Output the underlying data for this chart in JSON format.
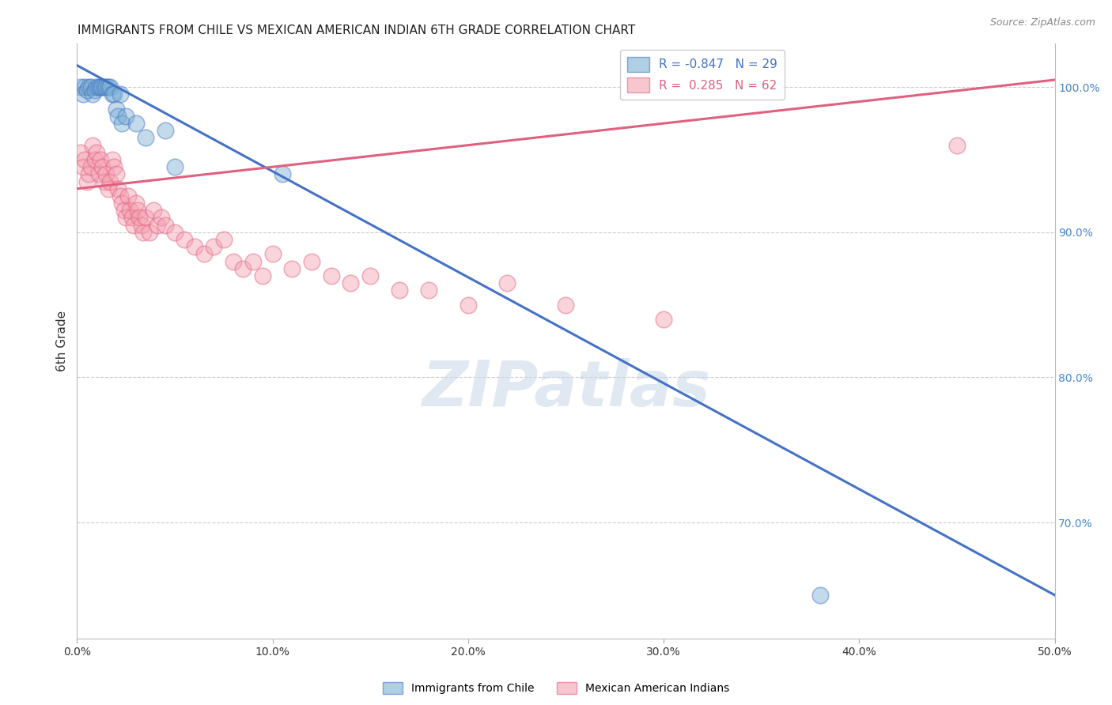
{
  "title": "IMMIGRANTS FROM CHILE VS MEXICAN AMERICAN INDIAN 6TH GRADE CORRELATION CHART",
  "source": "Source: ZipAtlas.com",
  "ylabel": "6th Grade",
  "xlim": [
    0.0,
    50.0
  ],
  "ylim": [
    62.0,
    103.0
  ],
  "ytick_labels": [
    "100.0%",
    "90.0%",
    "80.0%",
    "70.0%"
  ],
  "ytick_values": [
    100.0,
    90.0,
    80.0,
    70.0
  ],
  "xtick_values": [
    0.0,
    10.0,
    20.0,
    30.0,
    40.0,
    50.0
  ],
  "legend_blue_r": "R = -0.847",
  "legend_blue_n": "N = 29",
  "legend_pink_r": "R =  0.285",
  "legend_pink_n": "N = 62",
  "blue_color": "#7BAFD4",
  "pink_color": "#F4A0B0",
  "blue_line_color": "#4472C4",
  "pink_line_color": "#E06080",
  "watermark": "ZIPatlas",
  "blue_scatter_x": [
    0.2,
    0.3,
    0.4,
    0.5,
    0.6,
    0.7,
    0.8,
    0.9,
    1.0,
    1.1,
    1.2,
    1.3,
    1.4,
    1.5,
    1.6,
    1.7,
    1.8,
    1.9,
    2.0,
    2.1,
    2.2,
    2.3,
    2.5,
    3.0,
    3.5,
    4.5,
    5.0,
    10.5,
    38.0
  ],
  "blue_scatter_y": [
    100.0,
    99.5,
    100.0,
    99.8,
    100.0,
    100.0,
    99.5,
    99.8,
    100.0,
    100.0,
    100.0,
    100.0,
    100.0,
    100.0,
    100.0,
    100.0,
    99.5,
    99.5,
    98.5,
    98.0,
    99.5,
    97.5,
    98.0,
    97.5,
    96.5,
    97.0,
    94.5,
    94.0,
    65.0
  ],
  "pink_scatter_x": [
    0.2,
    0.3,
    0.4,
    0.5,
    0.6,
    0.7,
    0.8,
    0.9,
    1.0,
    1.1,
    1.2,
    1.3,
    1.4,
    1.5,
    1.6,
    1.7,
    1.8,
    1.9,
    2.0,
    2.1,
    2.2,
    2.3,
    2.4,
    2.5,
    2.6,
    2.7,
    2.8,
    2.9,
    3.0,
    3.1,
    3.2,
    3.3,
    3.4,
    3.5,
    3.7,
    3.9,
    4.1,
    4.3,
    4.5,
    5.0,
    5.5,
    6.0,
    6.5,
    7.0,
    7.5,
    8.0,
    8.5,
    9.0,
    9.5,
    10.0,
    11.0,
    12.0,
    13.0,
    14.0,
    15.0,
    16.5,
    18.0,
    20.0,
    22.0,
    25.0,
    30.0,
    45.0
  ],
  "pink_scatter_y": [
    95.5,
    94.5,
    95.0,
    93.5,
    94.0,
    94.5,
    96.0,
    95.0,
    95.5,
    94.0,
    95.0,
    94.5,
    93.5,
    94.0,
    93.0,
    93.5,
    95.0,
    94.5,
    94.0,
    93.0,
    92.5,
    92.0,
    91.5,
    91.0,
    92.5,
    91.5,
    91.0,
    90.5,
    92.0,
    91.5,
    91.0,
    90.5,
    90.0,
    91.0,
    90.0,
    91.5,
    90.5,
    91.0,
    90.5,
    90.0,
    89.5,
    89.0,
    88.5,
    89.0,
    89.5,
    88.0,
    87.5,
    88.0,
    87.0,
    88.5,
    87.5,
    88.0,
    87.0,
    86.5,
    87.0,
    86.0,
    86.0,
    85.0,
    86.5,
    85.0,
    84.0,
    96.0
  ],
  "blue_line_x": [
    0.0,
    50.0
  ],
  "blue_line_y": [
    101.5,
    65.0
  ],
  "pink_line_x": [
    0.0,
    50.0
  ],
  "pink_line_y": [
    93.0,
    100.5
  ],
  "background_color": "#ffffff",
  "grid_color": "#cccccc"
}
